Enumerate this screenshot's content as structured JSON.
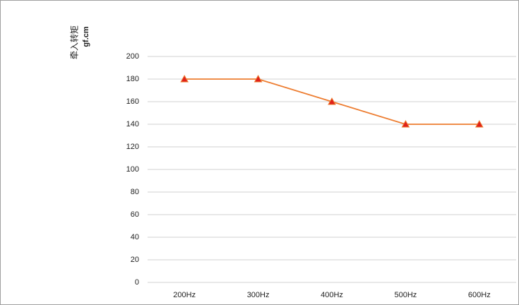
{
  "chart_data": {
    "type": "line",
    "y_label_lines": [
      "牵入转矩",
      "gf.cm"
    ],
    "categories": [
      "200Hz",
      "300Hz",
      "400Hz",
      "500Hz",
      "600Hz"
    ],
    "series": [
      {
        "color": "#ed7d31",
        "marker_color": "#e0201b",
        "values": [
          180,
          180,
          160,
          140,
          140
        ]
      }
    ],
    "ylim": [
      0,
      200
    ],
    "yticks": [
      0,
      20,
      40,
      60,
      80,
      100,
      120,
      140,
      160,
      180,
      200
    ],
    "grid": true
  }
}
